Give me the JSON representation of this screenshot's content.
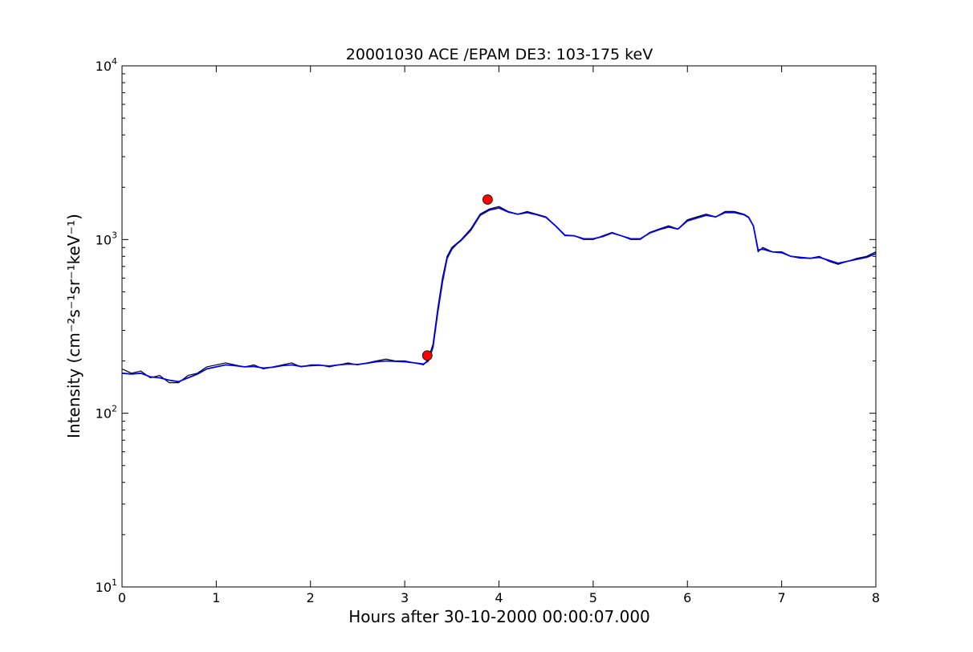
{
  "chart_data": {
    "type": "line",
    "title": "20001030 ACE /EPAM DE3: 103-175 keV",
    "xlabel": "Hours after 30-10-2000 00:00:07.000",
    "ylabel": "Intensity (cm⁻²s⁻¹sr⁻¹keV⁻¹)",
    "xlim": [
      0,
      8
    ],
    "ylim": [
      10,
      10000
    ],
    "yscale": "log",
    "grid": false,
    "x_ticks": [
      {
        "value": 0,
        "label": "0"
      },
      {
        "value": 1,
        "label": "1"
      },
      {
        "value": 2,
        "label": "2"
      },
      {
        "value": 3,
        "label": "3"
      },
      {
        "value": 4,
        "label": "4"
      },
      {
        "value": 5,
        "label": "5"
      },
      {
        "value": 6,
        "label": "6"
      },
      {
        "value": 7,
        "label": "7"
      },
      {
        "value": 8,
        "label": "8"
      }
    ],
    "y_ticks": [
      {
        "value": 10,
        "base": "10",
        "exp": "1"
      },
      {
        "value": 100,
        "base": "10",
        "exp": "2"
      },
      {
        "value": 1000,
        "base": "10",
        "exp": "3"
      },
      {
        "value": 10000,
        "base": "10",
        "exp": "4"
      }
    ],
    "series": [
      {
        "color": "#000000",
        "style": "raw",
        "x": [
          0.0,
          0.1,
          0.2,
          0.3,
          0.4,
          0.5,
          0.6,
          0.7,
          0.8,
          0.9,
          1.0,
          1.1,
          1.2,
          1.3,
          1.4,
          1.5,
          1.6,
          1.7,
          1.8,
          1.9,
          2.0,
          2.1,
          2.2,
          2.3,
          2.4,
          2.5,
          2.6,
          2.7,
          2.8,
          2.9,
          3.0,
          3.1,
          3.2,
          3.25,
          3.3,
          3.35,
          3.4,
          3.45,
          3.5,
          3.55,
          3.6,
          3.7,
          3.8,
          3.9,
          4.0,
          4.1,
          4.2,
          4.3,
          4.4,
          4.5,
          4.6,
          4.7,
          4.8,
          4.9,
          5.0,
          5.1,
          5.2,
          5.3,
          5.4,
          5.5,
          5.6,
          5.7,
          5.8,
          5.9,
          6.0,
          6.1,
          6.2,
          6.3,
          6.4,
          6.5,
          6.6,
          6.65,
          6.7,
          6.75,
          6.8,
          6.9,
          7.0,
          7.1,
          7.2,
          7.3,
          7.4,
          7.5,
          7.6,
          7.7,
          7.8,
          7.9,
          8.0
        ],
        "values": [
          180,
          170,
          175,
          160,
          165,
          150,
          150,
          165,
          170,
          185,
          190,
          195,
          190,
          185,
          190,
          180,
          185,
          190,
          195,
          185,
          190,
          190,
          185,
          190,
          195,
          190,
          195,
          200,
          205,
          200,
          200,
          195,
          190,
          205,
          250,
          400,
          600,
          800,
          900,
          950,
          1000,
          1150,
          1400,
          1500,
          1550,
          1450,
          1400,
          1450,
          1400,
          1350,
          1200,
          1050,
          1050,
          1000,
          1000,
          1050,
          1100,
          1050,
          1000,
          1000,
          1100,
          1150,
          1200,
          1150,
          1300,
          1350,
          1400,
          1350,
          1450,
          1450,
          1400,
          1350,
          1200,
          850,
          900,
          850,
          850,
          800,
          780,
          780,
          800,
          750,
          720,
          750,
          780,
          800,
          850
        ]
      },
      {
        "color": "#0000ff",
        "style": "smoothed",
        "x": [
          0.0,
          0.1,
          0.2,
          0.3,
          0.4,
          0.5,
          0.6,
          0.7,
          0.8,
          0.9,
          1.0,
          1.1,
          1.2,
          1.3,
          1.4,
          1.5,
          1.6,
          1.7,
          1.8,
          1.9,
          2.0,
          2.1,
          2.2,
          2.3,
          2.4,
          2.5,
          2.6,
          2.7,
          2.8,
          2.9,
          3.0,
          3.1,
          3.2,
          3.25,
          3.3,
          3.35,
          3.4,
          3.45,
          3.5,
          3.55,
          3.6,
          3.7,
          3.8,
          3.9,
          4.0,
          4.1,
          4.2,
          4.3,
          4.4,
          4.5,
          4.6,
          4.7,
          4.8,
          4.9,
          5.0,
          5.1,
          5.2,
          5.3,
          5.4,
          5.5,
          5.6,
          5.7,
          5.8,
          5.9,
          6.0,
          6.1,
          6.2,
          6.3,
          6.4,
          6.5,
          6.6,
          6.65,
          6.7,
          6.75,
          6.8,
          6.9,
          7.0,
          7.1,
          7.2,
          7.3,
          7.4,
          7.5,
          7.6,
          7.7,
          7.8,
          7.9,
          8.0
        ],
        "values": [
          170,
          168,
          170,
          162,
          160,
          155,
          152,
          160,
          168,
          180,
          185,
          190,
          188,
          185,
          186,
          182,
          184,
          188,
          190,
          186,
          188,
          189,
          187,
          190,
          192,
          191,
          194,
          198,
          200,
          199,
          198,
          195,
          192,
          200,
          240,
          380,
          570,
          780,
          880,
          940,
          990,
          1130,
          1380,
          1480,
          1520,
          1440,
          1400,
          1430,
          1390,
          1340,
          1200,
          1060,
          1050,
          1010,
          1010,
          1040,
          1090,
          1050,
          1010,
          1010,
          1090,
          1140,
          1180,
          1150,
          1280,
          1330,
          1380,
          1350,
          1430,
          1430,
          1390,
          1340,
          1200,
          870,
          880,
          850,
          840,
          800,
          790,
          780,
          790,
          760,
          730,
          750,
          770,
          790,
          830
        ]
      }
    ],
    "markers": [
      {
        "x": 3.24,
        "y": 215,
        "color": "#ff0000",
        "shape": "circle"
      },
      {
        "x": 3.88,
        "y": 1700,
        "color": "#ff0000",
        "shape": "circle"
      }
    ]
  }
}
